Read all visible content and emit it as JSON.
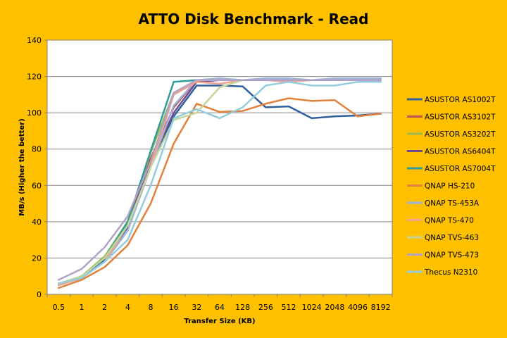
{
  "chart_data": {
    "type": "line",
    "title": "ATTO Disk Benchmark - Read",
    "xlabel": "Transfer Size (KB)",
    "ylabel": "MB/s (Higher the better)",
    "ylim": [
      0,
      140
    ],
    "yticks": [
      0,
      20,
      40,
      60,
      80,
      100,
      120,
      140
    ],
    "grid": true,
    "legend_position": "right",
    "categories": [
      "0.5",
      "1",
      "2",
      "4",
      "8",
      "16",
      "32",
      "64",
      "128",
      "256",
      "512",
      "1024",
      "2048",
      "4096",
      "8192"
    ],
    "series": [
      {
        "name": "ASUSTOR AS1002T",
        "color": "#2E5F9E",
        "values": [
          5,
          10,
          19,
          37,
          72,
          98,
          115,
          115,
          114.5,
          103,
          103.5,
          97,
          98,
          98.5,
          99.5
        ]
      },
      {
        "name": "ASUSTOR AS3102T",
        "color": "#C0504D",
        "values": [
          5,
          10,
          20,
          38,
          75,
          103,
          118,
          118,
          118,
          118,
          118,
          118,
          118,
          118,
          118
        ]
      },
      {
        "name": "ASUSTOR AS3202T",
        "color": "#9BBB59",
        "values": [
          5,
          10,
          21,
          40,
          78,
          111,
          118,
          118,
          118,
          118,
          118,
          118,
          118,
          118,
          118
        ]
      },
      {
        "name": "ASUSTOR AS6404T",
        "color": "#6E4C8C",
        "values": [
          5,
          10,
          20,
          39,
          72,
          100,
          117,
          118,
          118,
          118,
          118,
          118,
          118,
          118,
          118
        ]
      },
      {
        "name": "ASUSTOR AS7004T",
        "color": "#2F9C96",
        "values": [
          5,
          10,
          20,
          40,
          79,
          117,
          118,
          118,
          118,
          118,
          118,
          118,
          118,
          118,
          118
        ]
      },
      {
        "name": "QNAP HS-210",
        "color": "#E3803A",
        "values": [
          3.5,
          8,
          15,
          27,
          50,
          83,
          105,
          100.5,
          101,
          105,
          108,
          106.5,
          107,
          98,
          99.5
        ]
      },
      {
        "name": "QNAP TS-453A",
        "color": "#9DB3D9",
        "values": [
          5,
          9,
          18,
          35,
          70,
          104,
          118,
          119,
          118,
          119,
          119,
          118,
          119,
          119,
          119
        ]
      },
      {
        "name": "QNAP TS-470",
        "color": "#F2A48F",
        "values": [
          5,
          9,
          18,
          38,
          70,
          110,
          117,
          116,
          118,
          118,
          117,
          118,
          118,
          118,
          118
        ]
      },
      {
        "name": "QNAP TVS-463",
        "color": "#C3D69B",
        "values": [
          6,
          10,
          20,
          38,
          70,
          96,
          100,
          114,
          118,
          118,
          118,
          118,
          118,
          118,
          118
        ]
      },
      {
        "name": "QNAP TVS-473",
        "color": "#B3A2C7",
        "values": [
          8,
          14,
          26,
          43,
          73,
          111,
          118,
          118,
          118,
          118,
          118,
          118,
          118,
          118,
          118
        ]
      },
      {
        "name": "Thecus N2310",
        "color": "#93CDDD",
        "values": [
          6,
          9,
          18,
          30,
          60,
          97,
          102,
          97,
          103,
          115,
          117,
          115,
          115,
          117,
          117
        ]
      }
    ]
  }
}
